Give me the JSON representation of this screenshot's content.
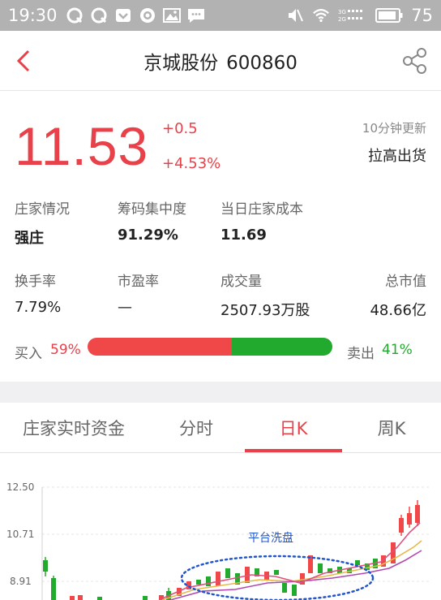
{
  "status_bar": {
    "time": "19:30",
    "battery_level": "75",
    "icons": [
      "qq-icon",
      "qq-icon",
      "pocket-icon",
      "target-icon",
      "image-icon",
      "message-icon"
    ],
    "right_icons": [
      "mute-icon",
      "wifi-icon",
      "signal-3g-4g-icon",
      "battery-icon"
    ]
  },
  "header": {
    "stock_name": "京城股份",
    "stock_code": "600860"
  },
  "quote": {
    "price": "11.53",
    "change_abs": "+0.5",
    "change_pct": "+4.53%",
    "update_freq": "10分钟更新",
    "signal": "拉高出货"
  },
  "stats": {
    "row1": [
      {
        "label": "庄家情况",
        "value": "强庄"
      },
      {
        "label": "筹码集中度",
        "value": "91.29%"
      },
      {
        "label": "当日庄家成本",
        "value": "11.69"
      }
    ],
    "row2": [
      {
        "label": "换手率",
        "value": "7.79%"
      },
      {
        "label": "市盈率",
        "value": "—"
      },
      {
        "label": "成交量",
        "value": "2507.93万股"
      },
      {
        "label": "总市值",
        "value": "48.66亿"
      }
    ]
  },
  "trade_ratio": {
    "buy_label": "买入",
    "buy_pct": "59%",
    "buy_fraction": 0.59,
    "sell_label": "卖出",
    "sell_pct": "41%"
  },
  "tabs": [
    {
      "label": "庄家实时资金",
      "active": false
    },
    {
      "label": "分时",
      "active": false
    },
    {
      "label": "日K",
      "active": true
    },
    {
      "label": "周K",
      "active": false
    }
  ],
  "colors": {
    "up": "#e8414a",
    "down": "#22aa2e",
    "ma5": "#e0507a",
    "ma10": "#e8b84a",
    "ma20": "#b04ab0",
    "annotation": "#2255cc"
  },
  "chart": {
    "y_ticks": [
      "12.50",
      "10.71",
      "8.91"
    ],
    "annotation": "平台洗盘"
  }
}
